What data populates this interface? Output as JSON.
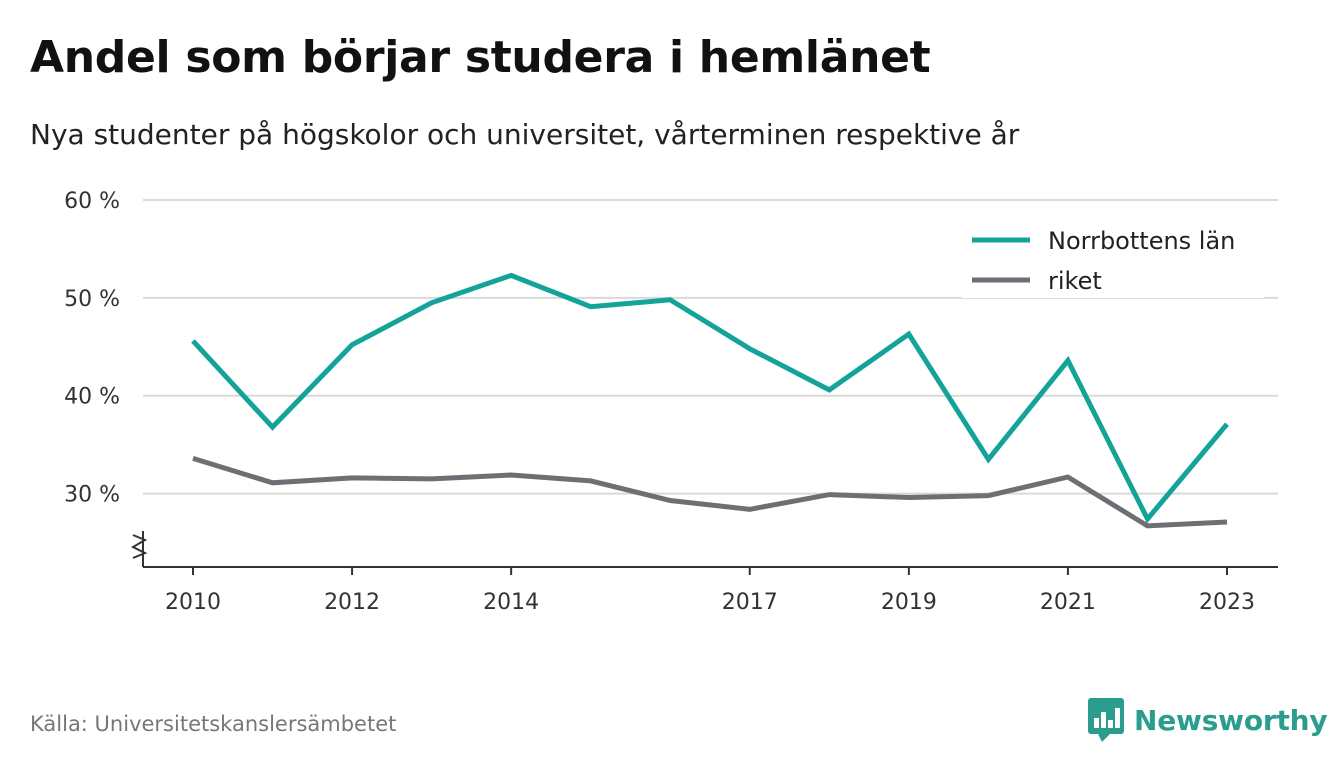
{
  "header": {
    "title": "Andel som börjar studera i hemlänet",
    "subtitle": "Nya studenter på högskolor och universitet, vårterminen respektive år"
  },
  "footer": {
    "source": "Källa: Universitetskanslersämbetet",
    "brand": "Newsworthy"
  },
  "colors": {
    "norrbotten": "#14a39a",
    "riket": "#6e6e74",
    "grid": "#d9d9d9",
    "axis": "#333333",
    "brand": "#2a9d8f"
  },
  "icons": {
    "logo": "bar-chart-speech-bubble-icon",
    "axis_break": "zigzag-axis-break-icon"
  },
  "chart_data": {
    "type": "line",
    "title": "Andel som börjar studera i hemlänet",
    "subtitle": "Nya studenter på högskolor och universitet, vårterminen respektive år",
    "x": [
      2010,
      2011,
      2012,
      2013,
      2014,
      2015,
      2016,
      2017,
      2018,
      2019,
      2020,
      2021,
      2022,
      2023
    ],
    "x_ticks": [
      2010,
      2012,
      2014,
      2017,
      2019,
      2021,
      2023
    ],
    "x_tick_labels": [
      "2010",
      "2012",
      "2014",
      "2017",
      "2019",
      "2021",
      "2023"
    ],
    "y_ticks": [
      30,
      40,
      50,
      60
    ],
    "y_tick_labels": [
      "30 %",
      "40 %",
      "50 %",
      "60 %"
    ],
    "ylim": [
      22.5,
      60
    ],
    "y_axis_break": true,
    "grid": true,
    "legend_position": "top-right",
    "series": [
      {
        "name": "Norrbottens län",
        "color": "#14a39a",
        "values": [
          45.6,
          36.8,
          45.2,
          49.5,
          52.3,
          49.1,
          49.8,
          44.8,
          40.6,
          46.3,
          33.5,
          43.6,
          27.4,
          37.1
        ]
      },
      {
        "name": "riket",
        "color": "#6e6e74",
        "values": [
          33.6,
          31.1,
          31.6,
          31.5,
          31.9,
          31.3,
          29.3,
          28.4,
          29.9,
          29.6,
          29.8,
          31.7,
          26.7,
          27.1
        ]
      }
    ]
  }
}
